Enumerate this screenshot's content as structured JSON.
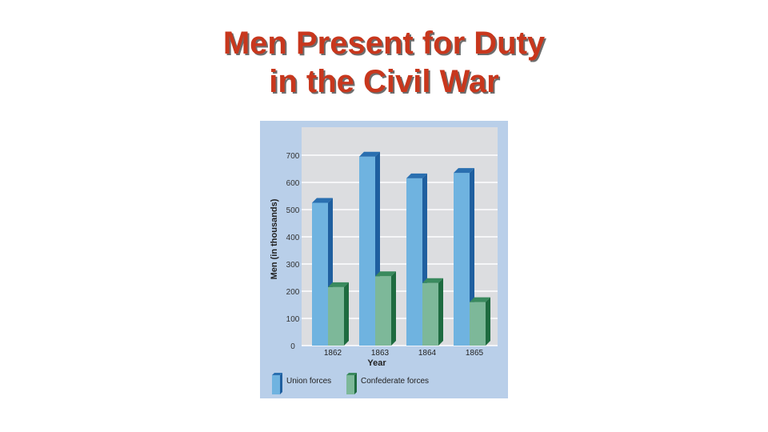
{
  "slide": {
    "title_line1": "Men Present for Duty",
    "title_line2": "in the Civil War"
  },
  "chart_data": {
    "type": "bar",
    "title": "",
    "xlabel": "Year",
    "ylabel": "Men (in thousands)",
    "categories": [
      "1862",
      "1863",
      "1864",
      "1865"
    ],
    "yticks": [
      "0",
      "100",
      "200",
      "300",
      "400",
      "500",
      "600",
      "700"
    ],
    "ylim": [
      0,
      800
    ],
    "grid": true,
    "legend_position": "bottom",
    "series": [
      {
        "name": "Union forces",
        "values": [
          525,
          695,
          615,
          635
        ],
        "color": "#6fb3e0",
        "side_color": "#1f5f9f",
        "top_color": "#2a6fb0"
      },
      {
        "name": "Confederate forces",
        "values": [
          215,
          255,
          230,
          160
        ],
        "color": "#7db899",
        "side_color": "#1e6b40",
        "top_color": "#3a8a5e"
      }
    ],
    "colors": {
      "panel_outer": "#b9cfe9",
      "plot_bg": "#dcdde0",
      "grid": "#ffffff"
    }
  }
}
